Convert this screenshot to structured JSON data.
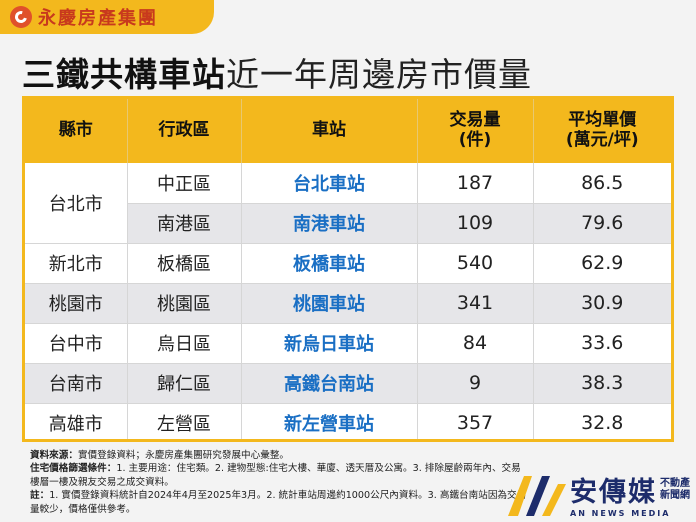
{
  "brand": {
    "name": "永慶房產集團"
  },
  "title": {
    "bold": "三鐵共構車站",
    "light": "近一年周邊房市價量"
  },
  "table": {
    "headers": [
      "縣市",
      "行政區",
      "車站",
      "交易量\n(件)",
      "平均單價\n(萬元/坪)"
    ],
    "rows": [
      {
        "county": "台北市",
        "district": "中正區",
        "station": "台北車站",
        "volume": "187",
        "price": "86.5"
      },
      {
        "county": "",
        "district": "南港區",
        "station": "南港車站",
        "volume": "109",
        "price": "79.6"
      },
      {
        "county": "新北市",
        "district": "板橋區",
        "station": "板橋車站",
        "volume": "540",
        "price": "62.9"
      },
      {
        "county": "桃園市",
        "district": "桃園區",
        "station": "桃園車站",
        "volume": "341",
        "price": "30.9"
      },
      {
        "county": "台中市",
        "district": "烏日區",
        "station": "新烏日車站",
        "volume": "84",
        "price": "33.6"
      },
      {
        "county": "台南市",
        "district": "歸仁區",
        "station": "高鐵台南站",
        "volume": "9",
        "price": "38.3"
      },
      {
        "county": "高雄市",
        "district": "左營區",
        "station": "新左營車站",
        "volume": "357",
        "price": "32.8"
      }
    ]
  },
  "notes": {
    "source_label": "資料來源：",
    "source_text": "實價登錄資料；永慶房產集團研究發展中心彙整。",
    "filter_label": "住宅價格篩選條件：",
    "filter_text": "1. 主要用途：住宅類。2. 建物型態:住宅大樓、華廈、透天厝及公寓。3. 排除屋齡兩年內、交易",
    "filter_text2": "樓層一樓及親友交易之成交資料。",
    "note_label": "註：",
    "note_text": "1. 實價登錄資料統計自2024年4月至2025年3月。2. 統計車站周邊約1000公尺內資料。3. 高鐵台南站因為交易",
    "note_text2": "量較少，價格僅供參考。"
  },
  "watermark": {
    "main": "安傳媒",
    "side1": "不動產",
    "side2": "新聞網",
    "sub": "AN NEWS MEDIA"
  },
  "colors": {
    "accent": "#f3b81d",
    "station": "#1a6fc4",
    "stripe": "#e6e6e9"
  }
}
